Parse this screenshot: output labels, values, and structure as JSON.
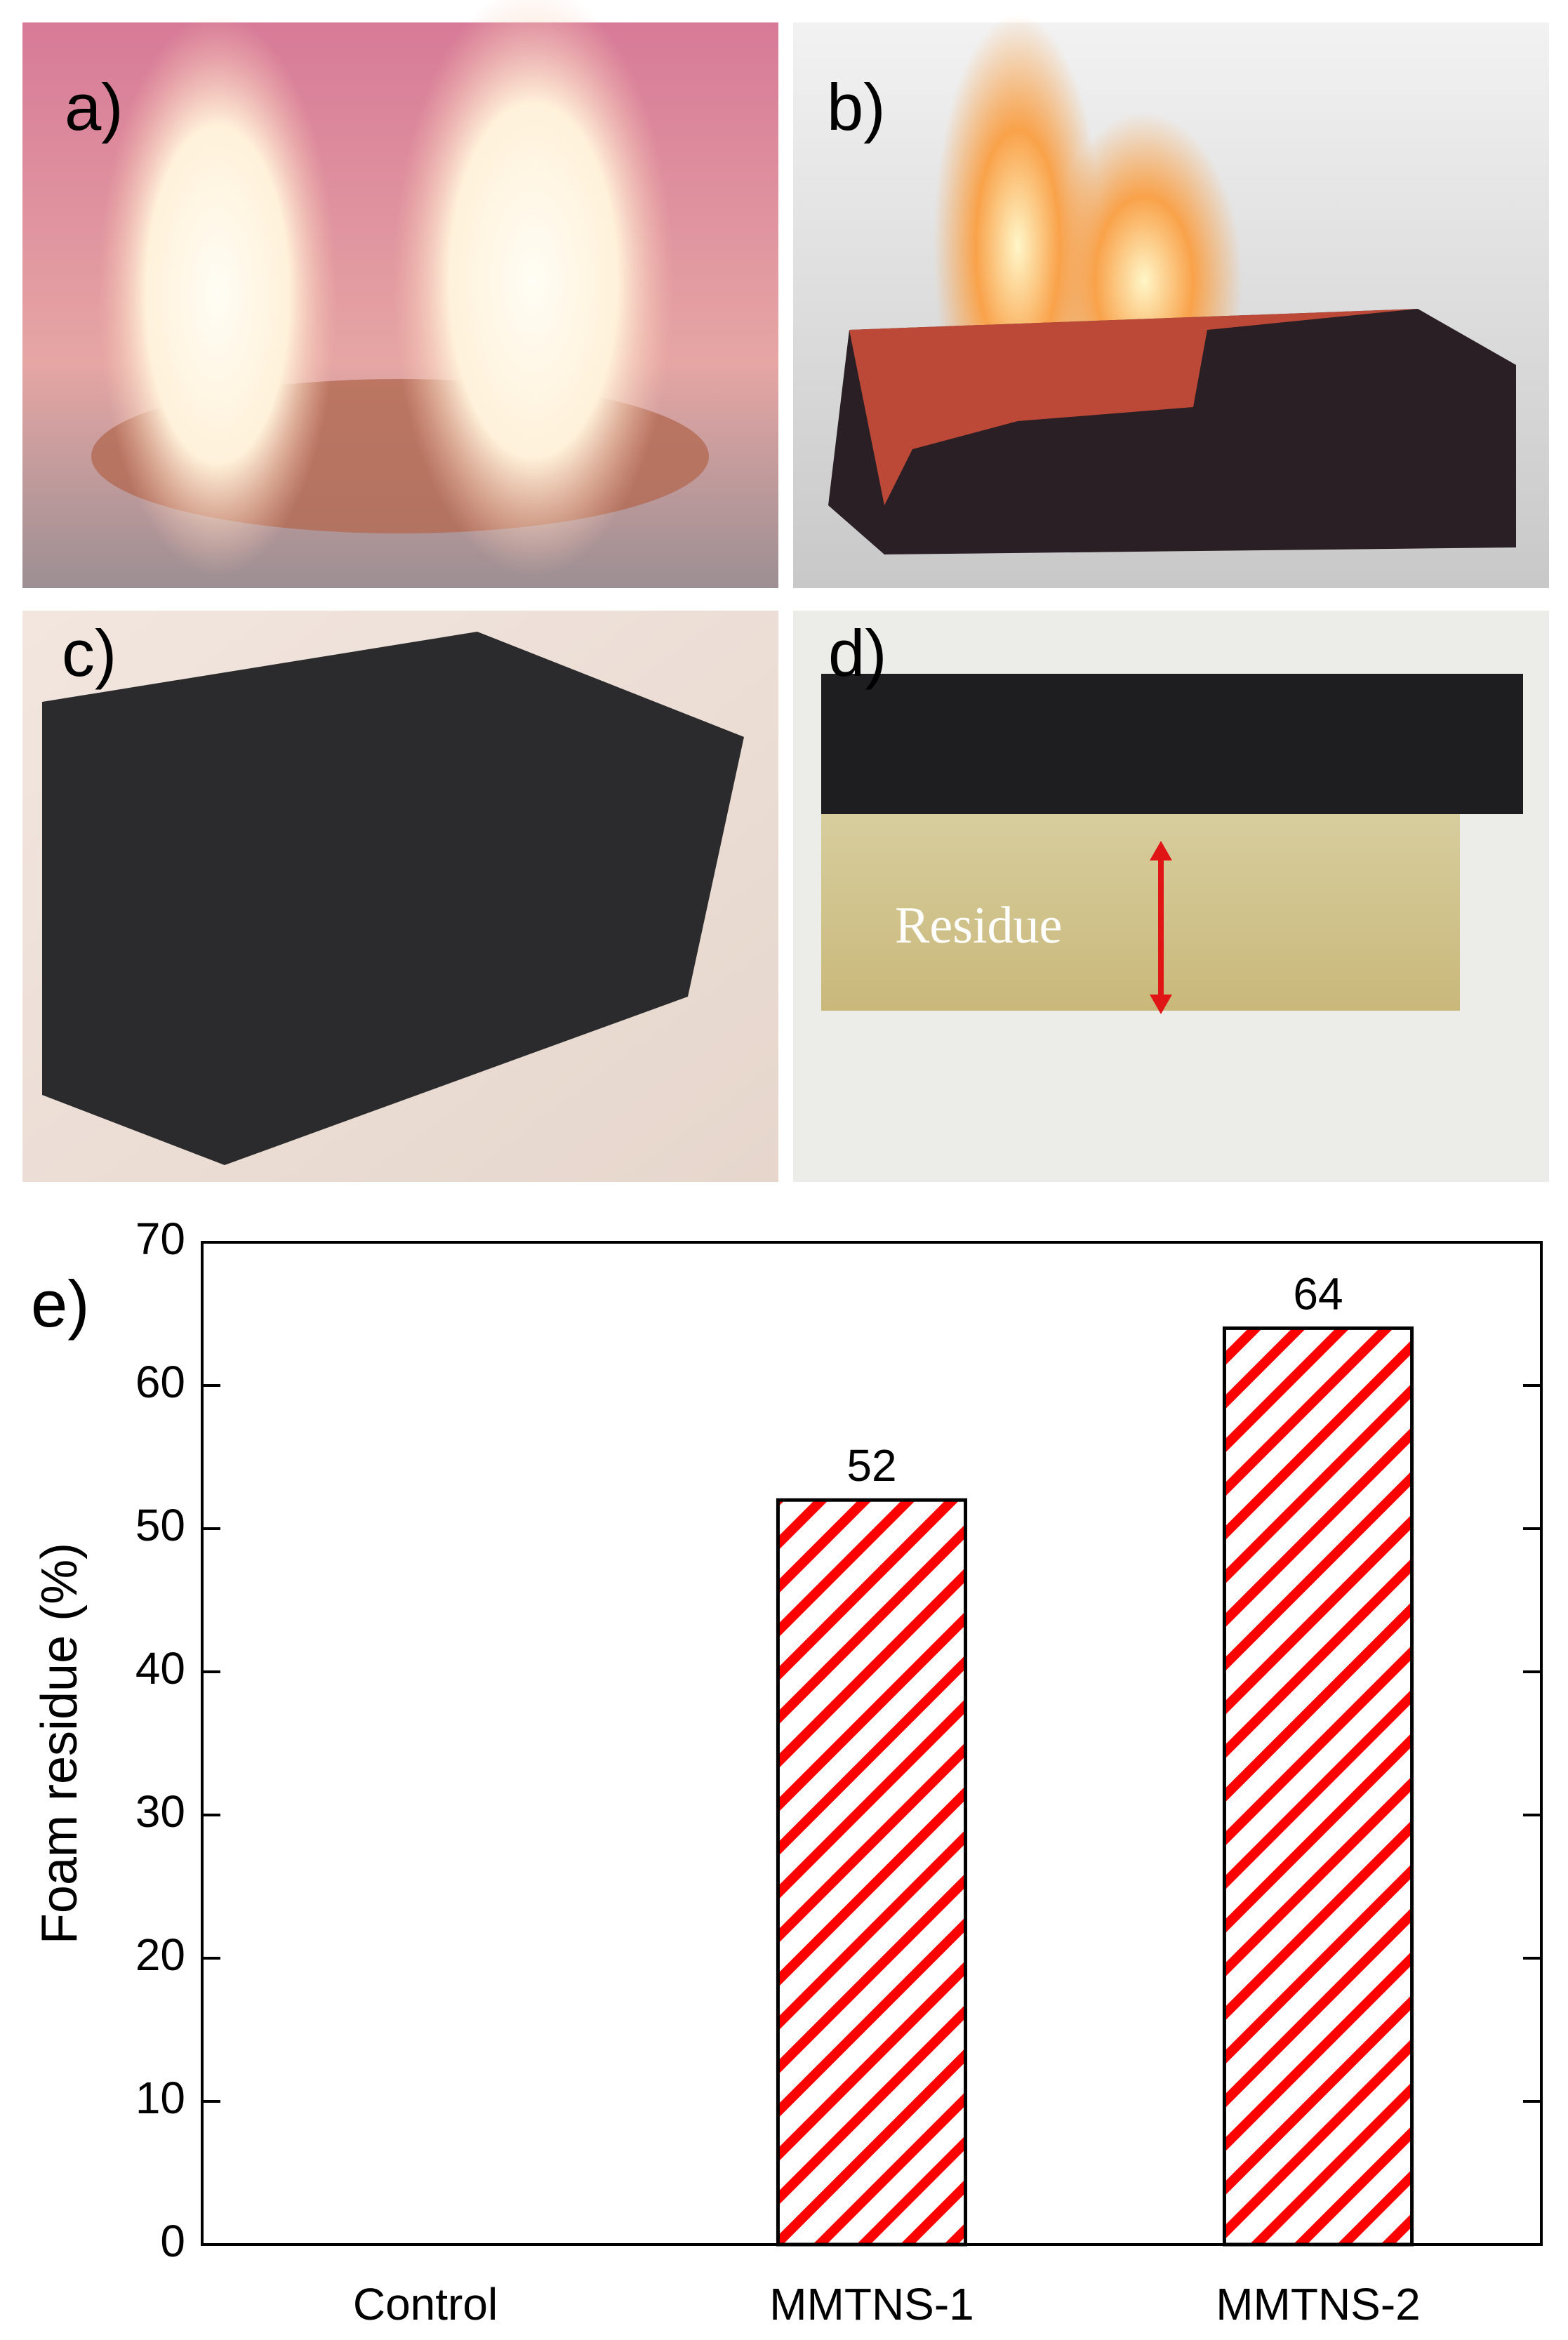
{
  "photo_panels": [
    {
      "label": "a)"
    },
    {
      "label": "b)"
    },
    {
      "label": "c)"
    },
    {
      "label": "d)"
    }
  ],
  "annotation": "Residue",
  "chart_data": {
    "type": "bar",
    "panel_label": "e)",
    "y_label": "Foam residue (%)",
    "categories": [
      "Control",
      "MMTNS-1",
      "MMTNS-2"
    ],
    "values": [
      null,
      52,
      64
    ],
    "color": "#ff0000",
    "ylim": [
      0,
      70
    ],
    "yticks": [
      0,
      10,
      20,
      30,
      40,
      50,
      60,
      70
    ]
  }
}
